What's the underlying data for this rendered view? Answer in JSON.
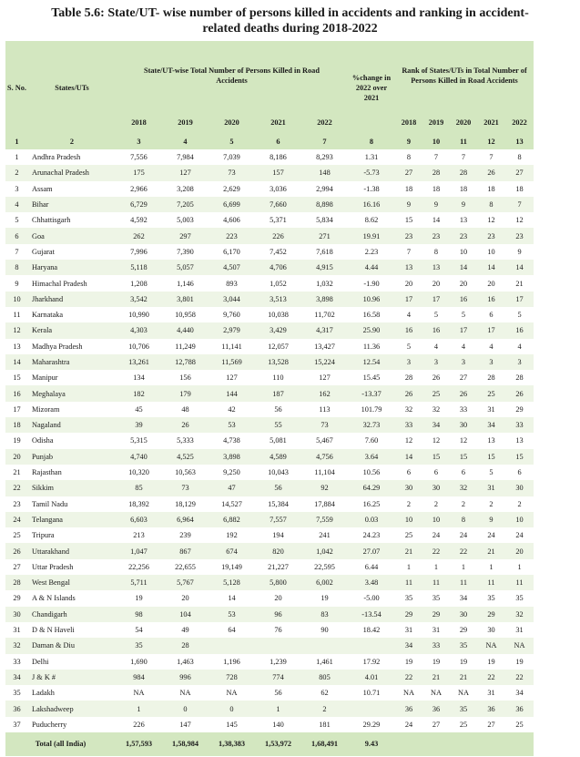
{
  "title_line1": "Table 5.6: State/UT- wise number of persons killed in accidents and ranking in accident-",
  "title_line2": "related deaths during 2018-2022",
  "headers": {
    "sno": "S. No.",
    "states": "States/UTs",
    "total_group": "State/UT-wise Total Number of Persons Killed in Road Accidents",
    "change": "%change in 2022 over 2021",
    "rank_group": "Rank of States/UTs in Total Number of Persons Killed in Road Accidents",
    "years": [
      "2018",
      "2019",
      "2020",
      "2021",
      "2022"
    ]
  },
  "column_numbers": [
    "1",
    "2",
    "3",
    "4",
    "5",
    "6",
    "7",
    "8",
    "9",
    "10",
    "11",
    "12",
    "13"
  ],
  "rows": [
    [
      "1",
      "Andhra Pradesh",
      "7,556",
      "7,984",
      "7,039",
      "8,186",
      "8,293",
      "1.31",
      "8",
      "7",
      "7",
      "7",
      "8"
    ],
    [
      "2",
      "Arunachal Pradesh",
      "175",
      "127",
      "73",
      "157",
      "148",
      "-5.73",
      "27",
      "28",
      "28",
      "26",
      "27"
    ],
    [
      "3",
      "Assam",
      "2,966",
      "3,208",
      "2,629",
      "3,036",
      "2,994",
      "-1.38",
      "18",
      "18",
      "18",
      "18",
      "18"
    ],
    [
      "4",
      "Bihar",
      "6,729",
      "7,205",
      "6,699",
      "7,660",
      "8,898",
      "16.16",
      "9",
      "9",
      "9",
      "8",
      "7"
    ],
    [
      "5",
      "Chhattisgarh",
      "4,592",
      "5,003",
      "4,606",
      "5,371",
      "5,834",
      "8.62",
      "15",
      "14",
      "13",
      "12",
      "12"
    ],
    [
      "6",
      "Goa",
      "262",
      "297",
      "223",
      "226",
      "271",
      "19.91",
      "23",
      "23",
      "23",
      "23",
      "23"
    ],
    [
      "7",
      "Gujarat",
      "7,996",
      "7,390",
      "6,170",
      "7,452",
      "7,618",
      "2.23",
      "7",
      "8",
      "10",
      "10",
      "9"
    ],
    [
      "8",
      "Haryana",
      "5,118",
      "5,057",
      "4,507",
      "4,706",
      "4,915",
      "4.44",
      "13",
      "13",
      "14",
      "14",
      "14"
    ],
    [
      "9",
      "Himachal Pradesh",
      "1,208",
      "1,146",
      "893",
      "1,052",
      "1,032",
      "-1.90",
      "20",
      "20",
      "20",
      "20",
      "21"
    ],
    [
      "10",
      "Jharkhand",
      "3,542",
      "3,801",
      "3,044",
      "3,513",
      "3,898",
      "10.96",
      "17",
      "17",
      "16",
      "16",
      "17"
    ],
    [
      "11",
      "Karnataka",
      "10,990",
      "10,958",
      "9,760",
      "10,038",
      "11,702",
      "16.58",
      "4",
      "5",
      "5",
      "6",
      "5"
    ],
    [
      "12",
      "Kerala",
      "4,303",
      "4,440",
      "2,979",
      "3,429",
      "4,317",
      "25.90",
      "16",
      "16",
      "17",
      "17",
      "16"
    ],
    [
      "13",
      "Madhya Pradesh",
      "10,706",
      "11,249",
      "11,141",
      "12,057",
      "13,427",
      "11.36",
      "5",
      "4",
      "4",
      "4",
      "4"
    ],
    [
      "14",
      "Maharashtra",
      "13,261",
      "12,788",
      "11,569",
      "13,528",
      "15,224",
      "12.54",
      "3",
      "3",
      "3",
      "3",
      "3"
    ],
    [
      "15",
      "Manipur",
      "134",
      "156",
      "127",
      "110",
      "127",
      "15.45",
      "28",
      "26",
      "27",
      "28",
      "28"
    ],
    [
      "16",
      "Meghalaya",
      "182",
      "179",
      "144",
      "187",
      "162",
      "-13.37",
      "26",
      "25",
      "26",
      "25",
      "26"
    ],
    [
      "17",
      "Mizoram",
      "45",
      "48",
      "42",
      "56",
      "113",
      "101.79",
      "32",
      "32",
      "33",
      "31",
      "29"
    ],
    [
      "18",
      "Nagaland",
      "39",
      "26",
      "53",
      "55",
      "73",
      "32.73",
      "33",
      "34",
      "30",
      "34",
      "33"
    ],
    [
      "19",
      "Odisha",
      "5,315",
      "5,333",
      "4,738",
      "5,081",
      "5,467",
      "7.60",
      "12",
      "12",
      "12",
      "13",
      "13"
    ],
    [
      "20",
      "Punjab",
      "4,740",
      "4,525",
      "3,898",
      "4,589",
      "4,756",
      "3.64",
      "14",
      "15",
      "15",
      "15",
      "15"
    ],
    [
      "21",
      "Rajasthan",
      "10,320",
      "10,563",
      "9,250",
      "10,043",
      "11,104",
      "10.56",
      "6",
      "6",
      "6",
      "5",
      "6"
    ],
    [
      "22",
      "Sikkim",
      "85",
      "73",
      "47",
      "56",
      "92",
      "64.29",
      "30",
      "30",
      "32",
      "31",
      "30"
    ],
    [
      "23",
      "Tamil Nadu",
      "18,392",
      "18,129",
      "14,527",
      "15,384",
      "17,884",
      "16.25",
      "2",
      "2",
      "2",
      "2",
      "2"
    ],
    [
      "24",
      "Telangana",
      "6,603",
      "6,964",
      "6,882",
      "7,557",
      "7,559",
      "0.03",
      "10",
      "10",
      "8",
      "9",
      "10"
    ],
    [
      "25",
      "Tripura",
      "213",
      "239",
      "192",
      "194",
      "241",
      "24.23",
      "25",
      "24",
      "24",
      "24",
      "24"
    ],
    [
      "26",
      "Uttarakhand",
      "1,047",
      "867",
      "674",
      "820",
      "1,042",
      "27.07",
      "21",
      "22",
      "22",
      "21",
      "20"
    ],
    [
      "27",
      "Uttar Pradesh",
      "22,256",
      "22,655",
      "19,149",
      "21,227",
      "22,595",
      "6.44",
      "1",
      "1",
      "1",
      "1",
      "1"
    ],
    [
      "28",
      "West Bengal",
      "5,711",
      "5,767",
      "5,128",
      "5,800",
      "6,002",
      "3.48",
      "11",
      "11",
      "11",
      "11",
      "11"
    ],
    [
      "29",
      "A & N Islands",
      "19",
      "20",
      "14",
      "20",
      "19",
      "-5.00",
      "35",
      "35",
      "34",
      "35",
      "35"
    ],
    [
      "30",
      "Chandigarh",
      "98",
      "104",
      "53",
      "96",
      "83",
      "-13.54",
      "29",
      "29",
      "30",
      "29",
      "32"
    ],
    [
      "31",
      "D & N Haveli",
      "54",
      "49",
      "64",
      "76",
      "90",
      "18.42",
      "31",
      "31",
      "29",
      "30",
      "31"
    ],
    [
      "32",
      "Daman & Diu",
      "35",
      "28",
      "",
      "",
      "",
      "",
      "34",
      "33",
      "35",
      "NA",
      "NA"
    ],
    [
      "33",
      "Delhi",
      "1,690",
      "1,463",
      "1,196",
      "1,239",
      "1,461",
      "17.92",
      "19",
      "19",
      "19",
      "19",
      "19"
    ],
    [
      "34",
      "J & K #",
      "984",
      "996",
      "728",
      "774",
      "805",
      "4.01",
      "22",
      "21",
      "21",
      "22",
      "22"
    ],
    [
      "35",
      "Ladakh",
      "NA",
      "NA",
      "NA",
      "56",
      "62",
      "10.71",
      "NA",
      "NA",
      "NA",
      "31",
      "34"
    ],
    [
      "36",
      "Lakshadweep",
      "1",
      "0",
      "0",
      "1",
      "2",
      "",
      "36",
      "36",
      "35",
      "36",
      "36"
    ],
    [
      "37",
      "Puducherry",
      "226",
      "147",
      "145",
      "140",
      "181",
      "29.29",
      "24",
      "27",
      "25",
      "27",
      "25"
    ]
  ],
  "total": {
    "label": "Total (all India)",
    "values": [
      "1,57,593",
      "1,58,984",
      "1,38,383",
      "1,53,972",
      "1,68,491",
      "9.43"
    ]
  }
}
